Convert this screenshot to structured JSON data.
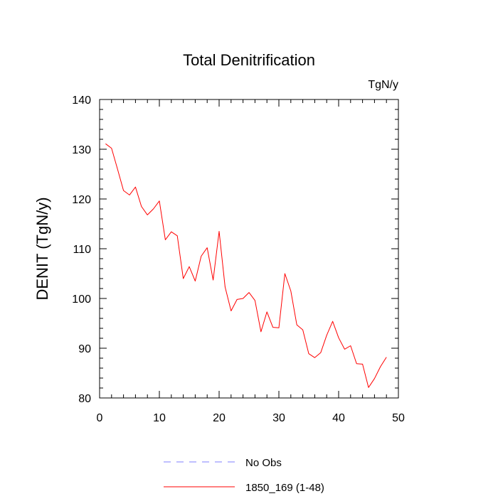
{
  "chart_data": {
    "type": "line",
    "title": "Total Denitrification",
    "units_label": "TgN/y",
    "ylabel": "DENIT  (TgN/y)",
    "xlabel": "",
    "xlim": [
      0,
      50
    ],
    "ylim": [
      80,
      140
    ],
    "x_major_ticks": [
      0,
      10,
      20,
      30,
      40,
      50
    ],
    "x_tick_labels": [
      "0",
      "10",
      "20",
      "30",
      "40",
      "50"
    ],
    "y_major_ticks": [
      80,
      90,
      100,
      110,
      120,
      130,
      140
    ],
    "y_tick_labels": [
      "80",
      "90",
      "100",
      "110",
      "120",
      "130",
      "140"
    ],
    "grid": false,
    "legend_position": "bottom-center",
    "series": [
      {
        "name": "No Obs",
        "color": "#7f7fff",
        "dashed": true,
        "x": [],
        "values": []
      },
      {
        "name": "1850_169 (1-48)",
        "color": "#ff0000",
        "dashed": false,
        "x": [
          1,
          2,
          3,
          4,
          5,
          6,
          7,
          8,
          9,
          10,
          11,
          12,
          13,
          14,
          15,
          16,
          17,
          18,
          19,
          20,
          21,
          22,
          23,
          24,
          25,
          26,
          27,
          28,
          29,
          30,
          31,
          32,
          33,
          34,
          35,
          36,
          37,
          38,
          39,
          40,
          41,
          42,
          43,
          44,
          45,
          46,
          47,
          48
        ],
        "values": [
          131.1,
          130.2,
          126.0,
          121.7,
          120.8,
          122.4,
          118.5,
          116.8,
          118.0,
          119.6,
          111.8,
          113.4,
          112.6,
          104.0,
          106.4,
          103.5,
          108.5,
          110.2,
          103.7,
          113.5,
          102.3,
          97.5,
          99.8,
          100.0,
          101.2,
          99.6,
          93.3,
          97.3,
          94.2,
          94.1,
          105.0,
          101.5,
          94.7,
          93.7,
          88.9,
          88.1,
          89.1,
          92.6,
          95.4,
          92.1,
          89.8,
          90.5,
          86.9,
          86.8,
          82.1,
          83.9,
          86.3,
          88.2
        ]
      }
    ]
  }
}
